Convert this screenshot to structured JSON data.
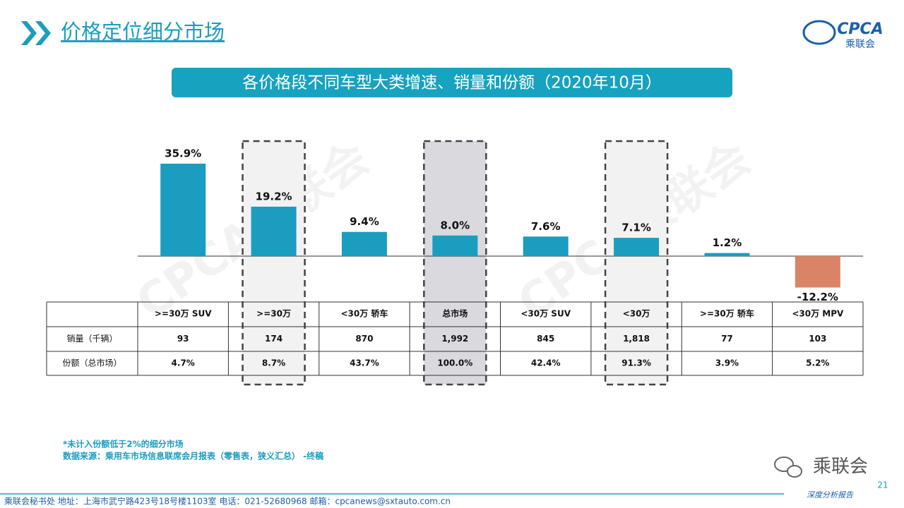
{
  "header": {
    "title": "价格定位细分市场",
    "logo_text": "CPCA",
    "logo_sub": "乘联会"
  },
  "chart_data": {
    "type": "bar",
    "title": "各价格段不同车型大类增速、销量和份额（2020年10月）",
    "categories": [
      ">=30万 SUV",
      ">=30万",
      "<30万 轿车",
      "总市场",
      "<30万 SUV",
      "<30万",
      ">=30万 轿车",
      "<30万 MPV"
    ],
    "values": [
      35.9,
      19.2,
      9.4,
      8.0,
      7.6,
      7.1,
      1.2,
      -12.2
    ],
    "value_labels": [
      "35.9%",
      "19.2%",
      "9.4%",
      "8.0%",
      "7.6%",
      "7.1%",
      "1.2%",
      "-12.2%"
    ],
    "color": "#1b9dbf",
    "negative_color": "#d98466"
  },
  "table": {
    "rows": [
      [
        "销量（千辆）",
        "93",
        "174",
        "870",
        "1,992",
        "845",
        "1,818",
        "77",
        "103"
      ],
      [
        "份额（总市场）",
        "4.7%",
        "8.7%",
        "43.7%",
        "100.0%",
        "42.4%",
        "91.3%",
        "3.9%",
        "5.2%"
      ]
    ]
  },
  "watermark": "CPCA乘联会",
  "notes": [
    "*未计入份额低于2%的细分市场",
    "数据来源：乘用车市场信息联席会月报表（零售表，狭义汇总）   -终稿"
  ],
  "footer": {
    "address": "乘联会秘书处   地址：上海市武宁路423号18号楼1103室    电话：021-52680968    邮箱：cpcanews@sxtauto.com.cn",
    "report": "深度分析报告",
    "page_number": "21",
    "wechat": "乘联会"
  }
}
